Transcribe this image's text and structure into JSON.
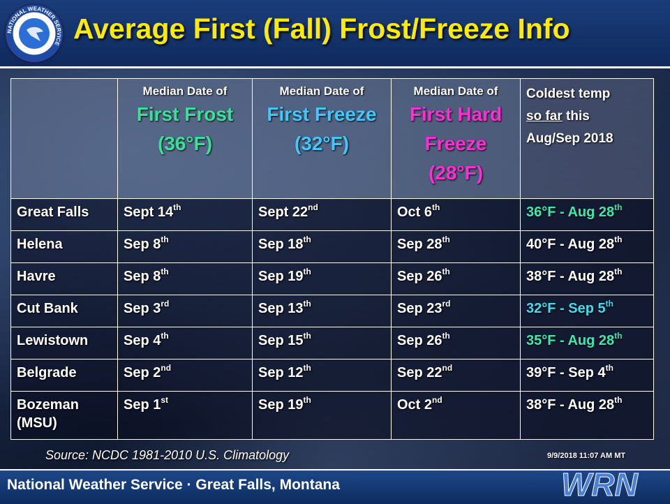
{
  "title": "Average First (Fall) Frost/Freeze Info",
  "header": {
    "col1": {
      "small": "Median Date of",
      "big1": "First Frost",
      "big2": "(36°F)"
    },
    "col2": {
      "small": "Median Date of",
      "big1": "First Freeze",
      "big2": "(32°F)"
    },
    "col3": {
      "small": "Median Date of",
      "big1": "First Hard",
      "big2": "Freeze",
      "big3": "(28°F)"
    },
    "col4": {
      "line1": "Coldest temp",
      "line2a": "so far",
      "line2b": " this",
      "line3": "Aug/Sep 2018"
    }
  },
  "rows": [
    {
      "city": "Great Falls",
      "frost": "Sept 14",
      "frost_sup": "th",
      "freeze": "Sept 22",
      "freeze_sup": "nd",
      "hard": "Oct 6",
      "hard_sup": "th",
      "coldest": "36°F - Aug 28",
      "coldest_sup": "th"
    },
    {
      "city": "Helena",
      "frost": "Sep 8",
      "frost_sup": "th",
      "freeze": "Sep 18",
      "freeze_sup": "th",
      "hard": "Sep 28",
      "hard_sup": "th",
      "coldest": "40°F - Aug 28",
      "coldest_sup": "th"
    },
    {
      "city": "Havre",
      "frost": "Sep 8",
      "frost_sup": "th",
      "freeze": "Sep 19",
      "freeze_sup": "th",
      "hard": "Sep 26",
      "hard_sup": "th",
      "coldest": "38°F - Aug 28",
      "coldest_sup": "th"
    },
    {
      "city": "Cut Bank",
      "frost": "Sep 3",
      "frost_sup": "rd",
      "freeze": "Sep 13",
      "freeze_sup": "th",
      "hard": "Sep 23",
      "hard_sup": "rd",
      "coldest": "32°F - Sep 5",
      "coldest_sup": "th"
    },
    {
      "city": "Lewistown",
      "frost": "Sep 4",
      "frost_sup": "th",
      "freeze": "Sep 15",
      "freeze_sup": "th",
      "hard": "Sep 26",
      "hard_sup": "th",
      "coldest": "35°F - Aug 28",
      "coldest_sup": "th"
    },
    {
      "city": "Belgrade",
      "frost": "Sep 2",
      "frost_sup": "nd",
      "freeze": "Sep 12",
      "freeze_sup": "th",
      "hard": "Sep 22",
      "hard_sup": "nd",
      "coldest": "39°F - Sep 4",
      "coldest_sup": "th"
    },
    {
      "city": "Bozeman",
      "city2": "(MSU)",
      "frost": "Sep 1",
      "frost_sup": "st",
      "freeze": "Sep 19",
      "freeze_sup": "th",
      "hard": "Oct 2",
      "hard_sup": "nd",
      "coldest": "38°F - Aug 28",
      "coldest_sup": "th"
    }
  ],
  "source": "Source: NCDC 1981-2010 U.S. Climatology",
  "timestamp": "9/9/2018  11:07 AM MT",
  "footer": "National Weather Service · Great Falls, Montana",
  "logo_text": "NATIONAL WEATHER SERVICE",
  "wrn_text": "WRN",
  "colors": {
    "title": "#ffeb00",
    "frost_header": "#39e09a",
    "freeze_header": "#40c8ff",
    "hard_freeze_header": "#ff2ed6",
    "coldest_green": "#40e8b0",
    "coldest_cyan": "#40dcf0"
  }
}
